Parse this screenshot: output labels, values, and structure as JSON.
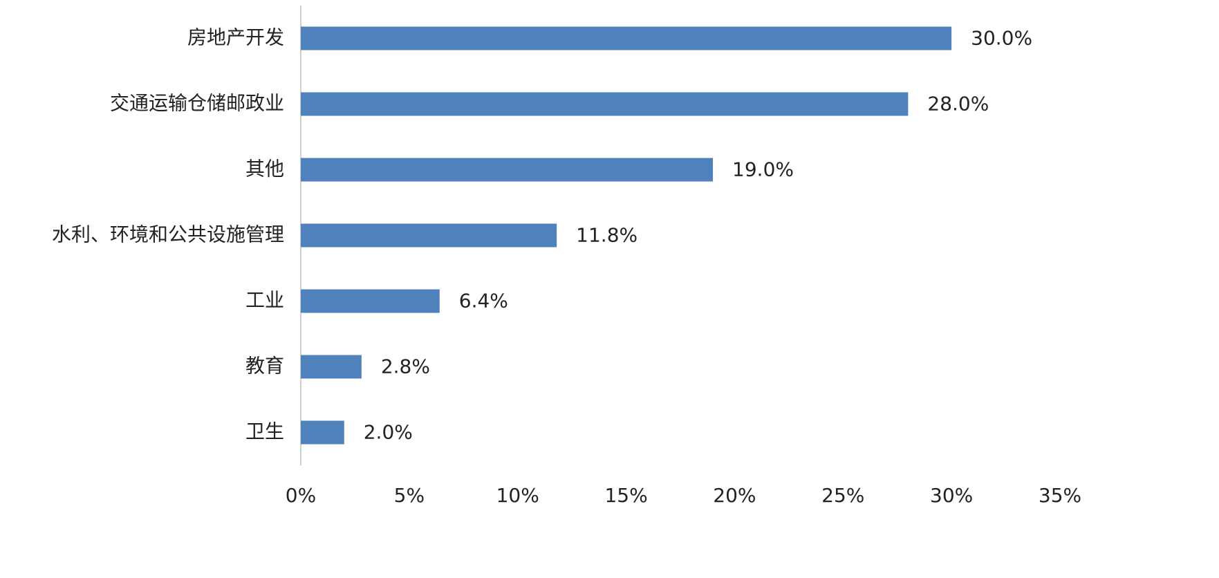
{
  "chart_data": {
    "type": "bar",
    "orientation": "horizontal",
    "categories": [
      "房地产开发",
      "交通运输仓储邮政业",
      "其他",
      "水利、环境和公共设施管理",
      "工业",
      "教育",
      "卫生"
    ],
    "values": [
      30.0,
      28.0,
      19.0,
      11.8,
      6.4,
      2.8,
      2.0
    ],
    "value_labels": [
      "30.0%",
      "28.0%",
      "19.0%",
      "11.8%",
      "6.4%",
      "2.8%",
      "2.0%"
    ],
    "color": "#4f81bd",
    "xlim": [
      0,
      35
    ],
    "xticks": [
      {
        "value": 0,
        "label": "0%"
      },
      {
        "value": 5,
        "label": "5%"
      },
      {
        "value": 10,
        "label": "10%"
      },
      {
        "value": 15,
        "label": "15%"
      },
      {
        "value": 20,
        "label": "20%"
      },
      {
        "value": 25,
        "label": "25%"
      },
      {
        "value": 30,
        "label": "30%"
      },
      {
        "value": 35,
        "label": "35%"
      }
    ],
    "grid": false
  }
}
